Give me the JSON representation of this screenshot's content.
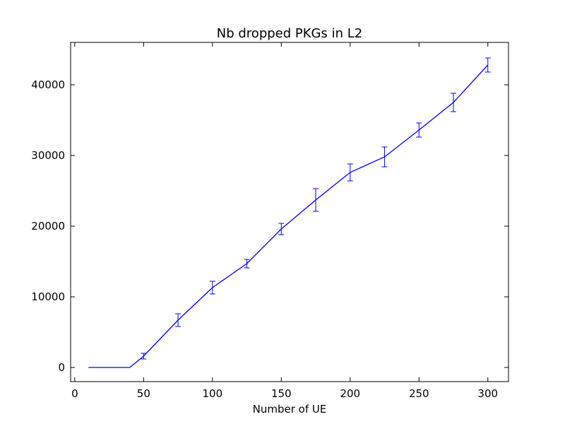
{
  "chart_data": {
    "type": "line",
    "title": "Nb dropped PKGs in L2",
    "xlabel": "Number of UE",
    "ylabel": "",
    "xlim": [
      -3,
      315
    ],
    "ylim": [
      -2000,
      46000
    ],
    "xticks": [
      0,
      50,
      100,
      150,
      200,
      250,
      300
    ],
    "yticks": [
      0,
      10000,
      20000,
      30000,
      40000
    ],
    "grid": false,
    "colors": {
      "series": "#0000ff",
      "axes": "#000000",
      "background": "#ffffff"
    },
    "series": [
      {
        "x": [
          10,
          20,
          30,
          40,
          50,
          75,
          100,
          125,
          150,
          175,
          200,
          225,
          250,
          275,
          300
        ],
        "y": [
          0,
          0,
          0,
          0,
          1600,
          6700,
          11300,
          14700,
          19600,
          23700,
          27600,
          29800,
          33600,
          37500,
          42800
        ],
        "error_x": [
          50,
          75,
          100,
          125,
          150,
          175,
          200,
          225,
          250,
          275,
          300
        ],
        "error_low": [
          1200,
          5800,
          10400,
          14100,
          18800,
          22100,
          26400,
          28400,
          32600,
          36200,
          41800
        ],
        "error_high": [
          2000,
          7600,
          12200,
          15300,
          20400,
          25300,
          28800,
          31200,
          34600,
          38800,
          43800
        ]
      }
    ]
  }
}
